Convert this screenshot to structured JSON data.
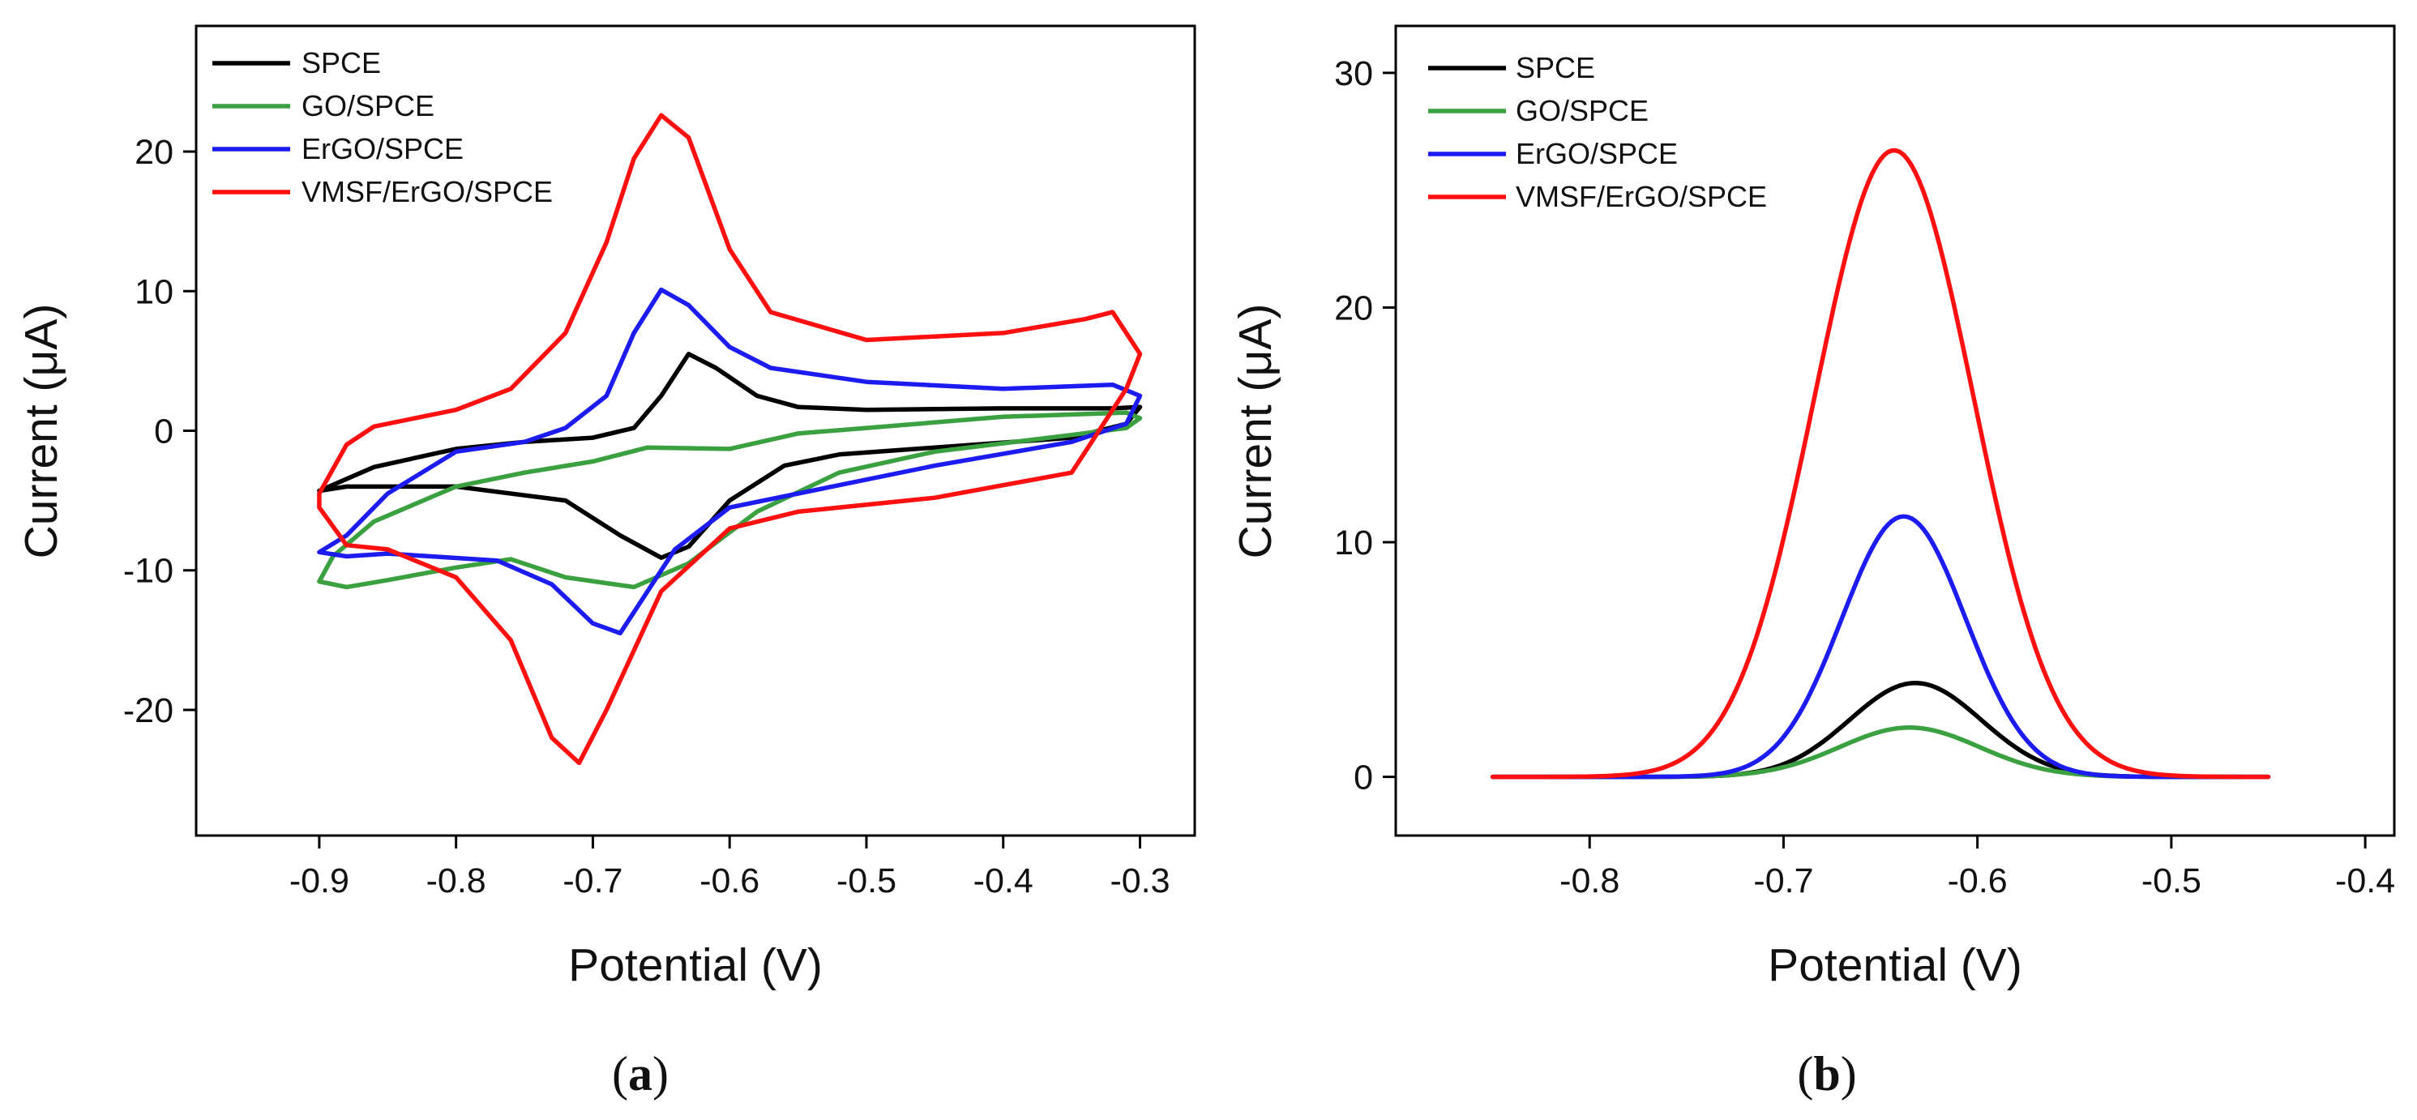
{
  "chart_data": [
    {
      "panel": "a",
      "panel_label": "a",
      "type": "line",
      "title": "",
      "xlabel": "Potential (V)",
      "ylabel": "Current (μA)",
      "xlim": [
        -0.99,
        -0.26
      ],
      "ylim": [
        -29,
        29
      ],
      "xticks": [
        -0.9,
        -0.8,
        -0.7,
        -0.6,
        -0.5,
        -0.4,
        -0.3
      ],
      "xtick_labels": [
        "-0.9",
        "-0.8",
        "-0.7",
        "-0.6",
        "-0.5",
        "-0.4",
        "-0.3"
      ],
      "yticks": [
        -20,
        -10,
        0,
        10,
        20
      ],
      "ytick_labels": [
        "-20",
        "-10",
        "0",
        "10",
        "20"
      ],
      "legend_position": "top-left",
      "series": [
        {
          "name": "SPCE",
          "color": "#000000",
          "closed": true,
          "points": [
            [
              -0.9,
              -4.3
            ],
            [
              -0.86,
              -2.6
            ],
            [
              -0.8,
              -1.3
            ],
            [
              -0.75,
              -0.8
            ],
            [
              -0.7,
              -0.5
            ],
            [
              -0.67,
              0.2
            ],
            [
              -0.65,
              2.5
            ],
            [
              -0.63,
              5.5
            ],
            [
              -0.61,
              4.5
            ],
            [
              -0.58,
              2.5
            ],
            [
              -0.55,
              1.7
            ],
            [
              -0.5,
              1.5
            ],
            [
              -0.4,
              1.6
            ],
            [
              -0.32,
              1.6
            ],
            [
              -0.3,
              1.7
            ],
            [
              -0.31,
              0.5
            ],
            [
              -0.35,
              -0.5
            ],
            [
              -0.45,
              -1.2
            ],
            [
              -0.52,
              -1.7
            ],
            [
              -0.56,
              -2.5
            ],
            [
              -0.6,
              -5.0
            ],
            [
              -0.63,
              -8.3
            ],
            [
              -0.65,
              -9.1
            ],
            [
              -0.68,
              -7.5
            ],
            [
              -0.72,
              -5.0
            ],
            [
              -0.8,
              -4.0
            ],
            [
              -0.88,
              -4.0
            ],
            [
              -0.9,
              -4.3
            ]
          ]
        },
        {
          "name": "GO/SPCE",
          "color": "#3ba140",
          "closed": true,
          "points": [
            [
              -0.89,
              -9.0
            ],
            [
              -0.86,
              -6.5
            ],
            [
              -0.8,
              -4.0
            ],
            [
              -0.75,
              -3.0
            ],
            [
              -0.7,
              -2.2
            ],
            [
              -0.66,
              -1.2
            ],
            [
              -0.6,
              -1.3
            ],
            [
              -0.55,
              -0.2
            ],
            [
              -0.5,
              0.2
            ],
            [
              -0.4,
              1.0
            ],
            [
              -0.31,
              1.3
            ],
            [
              -0.3,
              0.9
            ],
            [
              -0.31,
              0.2
            ],
            [
              -0.35,
              -0.3
            ],
            [
              -0.45,
              -1.5
            ],
            [
              -0.52,
              -3.0
            ],
            [
              -0.58,
              -5.8
            ],
            [
              -0.63,
              -9.5
            ],
            [
              -0.67,
              -11.2
            ],
            [
              -0.72,
              -10.5
            ],
            [
              -0.76,
              -9.2
            ],
            [
              -0.8,
              -9.8
            ],
            [
              -0.85,
              -10.7
            ],
            [
              -0.88,
              -11.2
            ],
            [
              -0.9,
              -10.8
            ],
            [
              -0.89,
              -9.0
            ]
          ]
        },
        {
          "name": "ErGO/SPCE",
          "color": "#1c1cf0",
          "closed": true,
          "points": [
            [
              -0.9,
              -8.7
            ],
            [
              -0.88,
              -7.5
            ],
            [
              -0.85,
              -4.5
            ],
            [
              -0.8,
              -1.5
            ],
            [
              -0.75,
              -0.8
            ],
            [
              -0.72,
              0.2
            ],
            [
              -0.69,
              2.5
            ],
            [
              -0.67,
              7.0
            ],
            [
              -0.65,
              10.1
            ],
            [
              -0.63,
              9.0
            ],
            [
              -0.6,
              6.0
            ],
            [
              -0.57,
              4.5
            ],
            [
              -0.5,
              3.5
            ],
            [
              -0.4,
              3.0
            ],
            [
              -0.32,
              3.3
            ],
            [
              -0.3,
              2.5
            ],
            [
              -0.31,
              0.5
            ],
            [
              -0.35,
              -0.8
            ],
            [
              -0.45,
              -2.5
            ],
            [
              -0.55,
              -4.5
            ],
            [
              -0.6,
              -5.5
            ],
            [
              -0.64,
              -8.5
            ],
            [
              -0.68,
              -14.5
            ],
            [
              -0.7,
              -13.8
            ],
            [
              -0.73,
              -11.0
            ],
            [
              -0.77,
              -9.3
            ],
            [
              -0.85,
              -8.8
            ],
            [
              -0.88,
              -9.0
            ],
            [
              -0.9,
              -8.7
            ]
          ]
        },
        {
          "name": "VMSF/ErGO/SPCE",
          "color": "#ff1010",
          "closed": true,
          "points": [
            [
              -0.9,
              -4.5
            ],
            [
              -0.88,
              -1.0
            ],
            [
              -0.86,
              0.3
            ],
            [
              -0.8,
              1.5
            ],
            [
              -0.76,
              3.0
            ],
            [
              -0.72,
              7.0
            ],
            [
              -0.69,
              13.5
            ],
            [
              -0.67,
              19.5
            ],
            [
              -0.65,
              22.6
            ],
            [
              -0.63,
              21.0
            ],
            [
              -0.6,
              13.0
            ],
            [
              -0.57,
              8.5
            ],
            [
              -0.5,
              6.5
            ],
            [
              -0.4,
              7.0
            ],
            [
              -0.34,
              8.0
            ],
            [
              -0.32,
              8.5
            ],
            [
              -0.3,
              5.5
            ],
            [
              -0.31,
              3.0
            ],
            [
              -0.35,
              -3.0
            ],
            [
              -0.45,
              -4.8
            ],
            [
              -0.55,
              -5.8
            ],
            [
              -0.6,
              -7.0
            ],
            [
              -0.65,
              -11.5
            ],
            [
              -0.69,
              -20.0
            ],
            [
              -0.71,
              -23.8
            ],
            [
              -0.73,
              -22.0
            ],
            [
              -0.76,
              -15.0
            ],
            [
              -0.8,
              -10.5
            ],
            [
              -0.85,
              -8.5
            ],
            [
              -0.88,
              -8.2
            ],
            [
              -0.9,
              -5.5
            ],
            [
              -0.9,
              -4.5
            ]
          ]
        }
      ]
    },
    {
      "panel": "b",
      "panel_label": "b",
      "type": "line",
      "title": "",
      "xlabel": "Potential (V)",
      "ylabel": "Current (μA)",
      "xlim": [
        -0.9,
        -0.385
      ],
      "ylim": [
        -2.5,
        32
      ],
      "xticks": [
        -0.8,
        -0.7,
        -0.6,
        -0.5,
        -0.4
      ],
      "xtick_labels": [
        "-0.8",
        "-0.7",
        "-0.6",
        "-0.5",
        "-0.4"
      ],
      "yticks": [
        0,
        10,
        20,
        30
      ],
      "ytick_labels": [
        "0",
        "10",
        "20",
        "30"
      ],
      "legend_position": "top-left",
      "x_range": [
        -0.85,
        -0.45
      ],
      "series": [
        {
          "name": "SPCE",
          "color": "#000000",
          "peak_x": -0.632,
          "peak_y": 4.0,
          "width": 0.034
        },
        {
          "name": "GO/SPCE",
          "color": "#3ba140",
          "peak_x": -0.635,
          "peak_y": 2.1,
          "width": 0.036
        },
        {
          "name": "ErGO/SPCE",
          "color": "#1c1cf0",
          "peak_x": -0.638,
          "peak_y": 11.1,
          "width": 0.032
        },
        {
          "name": "VMSF/ErGO/SPCE",
          "color": "#ff1010",
          "peak_x": -0.643,
          "peak_y": 26.7,
          "width": 0.041
        }
      ]
    }
  ]
}
